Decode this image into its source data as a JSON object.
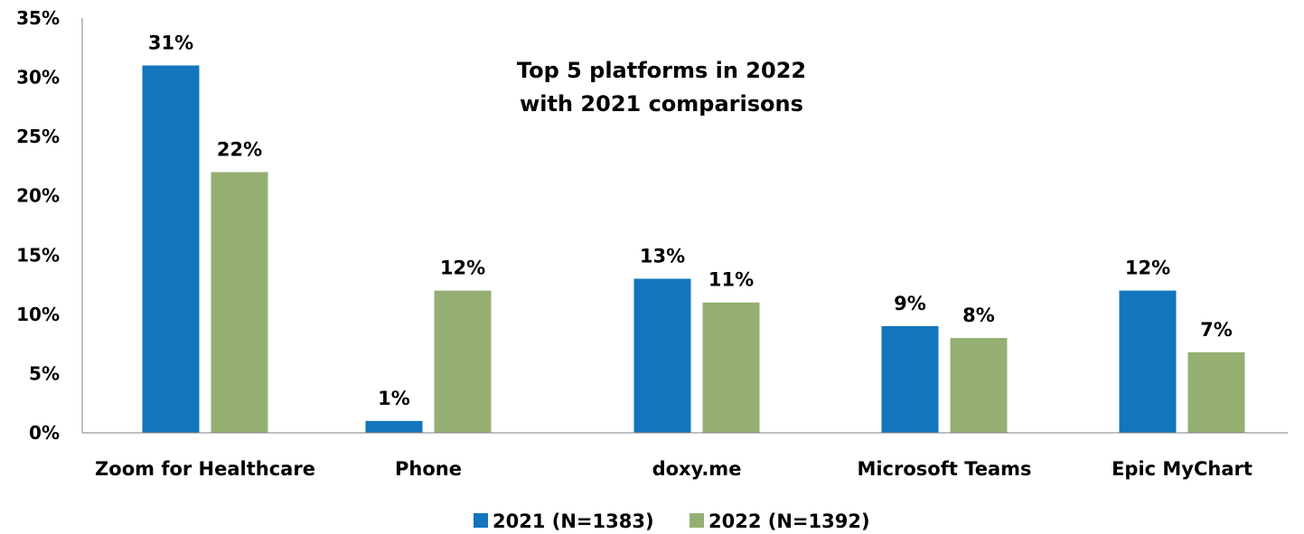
{
  "chart_data": {
    "type": "bar",
    "title_lines": [
      "Top 5 platforms in 2022",
      "with 2021 comparisons"
    ],
    "categories": [
      "Zoom for Healthcare",
      "Phone",
      "doxy.me",
      "Microsoft Teams",
      "Epic MyChart"
    ],
    "series": [
      {
        "name": "2021 (N=1383)",
        "color": "#1275BE",
        "values": [
          31,
          1,
          13,
          9,
          12
        ],
        "labels": [
          "31%",
          "1%",
          "13%",
          "9%",
          "12%"
        ]
      },
      {
        "name": "2022 (N=1392)",
        "color": "#95AF73",
        "values": [
          22,
          12,
          11,
          8,
          6.8
        ],
        "labels": [
          "22%",
          "12%",
          "11%",
          "8%",
          "7%"
        ]
      }
    ],
    "ylim": [
      0,
      35
    ],
    "yticks": [
      0,
      5,
      10,
      15,
      20,
      25,
      30,
      35
    ],
    "ytick_labels": [
      "0%",
      "5%",
      "10%",
      "15%",
      "20%",
      "25%",
      "30%",
      "35%"
    ],
    "grid": false,
    "legend_position": "bottom-center"
  }
}
